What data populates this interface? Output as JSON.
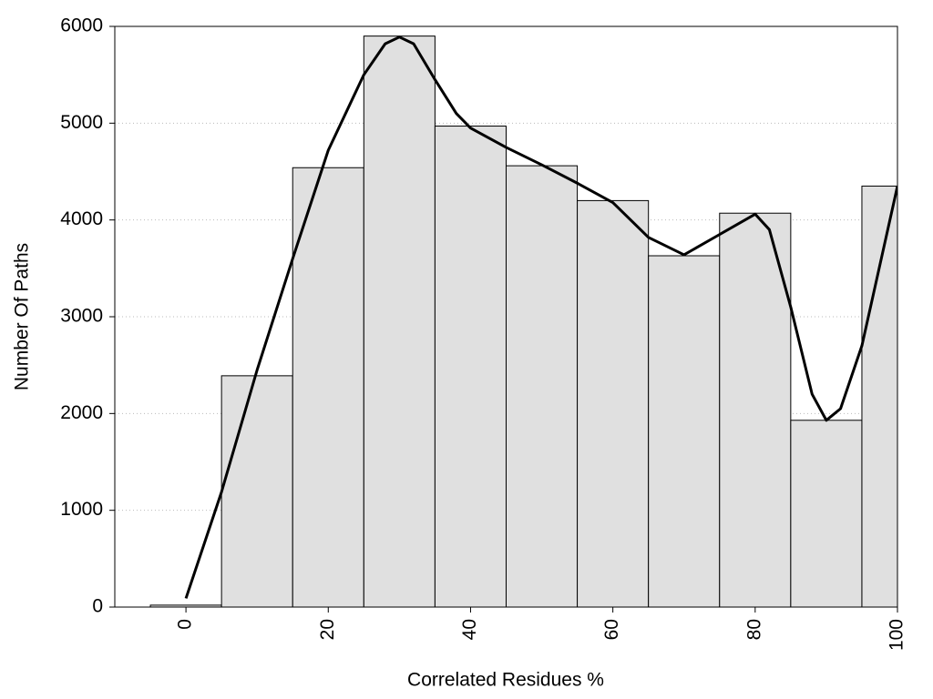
{
  "chart_data": {
    "type": "histogram",
    "x_label": "Correlated Residues %",
    "y_label": "Number Of Paths",
    "bins": [
      -5,
      5,
      15,
      25,
      35,
      45,
      55,
      65,
      75,
      85,
      95,
      105
    ],
    "counts": [
      20,
      2390,
      4540,
      5900,
      4970,
      4560,
      4200,
      3630,
      4070,
      1930,
      4350
    ],
    "color": "#e0e0e0",
    "xlim": [
      -10,
      100
    ],
    "xticks": [
      0,
      20,
      40,
      60,
      80,
      100
    ],
    "ylim": [
      0,
      6000
    ],
    "yticks": [
      0,
      1000,
      2000,
      3000,
      4000,
      5000,
      6000
    ],
    "grid": true,
    "curve": {
      "color": "#000000",
      "x": [
        0,
        5,
        10,
        15,
        20,
        25,
        28,
        30,
        32,
        35,
        38,
        40,
        45,
        50,
        55,
        60,
        65,
        70,
        75,
        80,
        82,
        85,
        88,
        90,
        92,
        95,
        100
      ],
      "values": [
        90,
        1190,
        2450,
        3600,
        4720,
        5500,
        5820,
        5890,
        5820,
        5450,
        5100,
        4950,
        4750,
        4570,
        4380,
        4180,
        3820,
        3640,
        3850,
        4060,
        3900,
        3100,
        2200,
        1930,
        2050,
        2700,
        4350
      ]
    }
  }
}
